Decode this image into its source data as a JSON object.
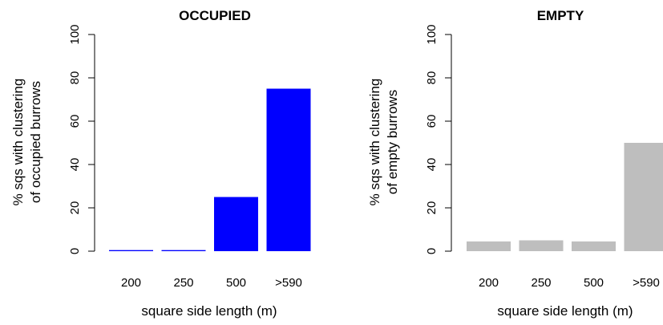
{
  "chart_data": [
    {
      "type": "bar",
      "title": "OCCUPIED",
      "xlabel": "square side length (m)",
      "ylabel": [
        "% sqs with clustering",
        "of occupied burrows"
      ],
      "categories": [
        "200",
        "250",
        "500",
        ">590"
      ],
      "values": [
        0.5,
        0.5,
        25,
        75
      ],
      "ylim": [
        0,
        100
      ],
      "yticks": [
        0,
        20,
        40,
        60,
        80,
        100
      ],
      "color": "#0000ff",
      "grid": false
    },
    {
      "type": "bar",
      "title": "EMPTY",
      "xlabel": "square side length (m)",
      "ylabel": [
        "% sqs with clustering",
        "of empty burrows"
      ],
      "categories": [
        "200",
        "250",
        "500",
        ">590"
      ],
      "values": [
        4.5,
        5,
        4.5,
        50
      ],
      "ylim": [
        0,
        100
      ],
      "yticks": [
        0,
        20,
        40,
        60,
        80,
        100
      ],
      "color": "#bebebe",
      "grid": false
    }
  ]
}
